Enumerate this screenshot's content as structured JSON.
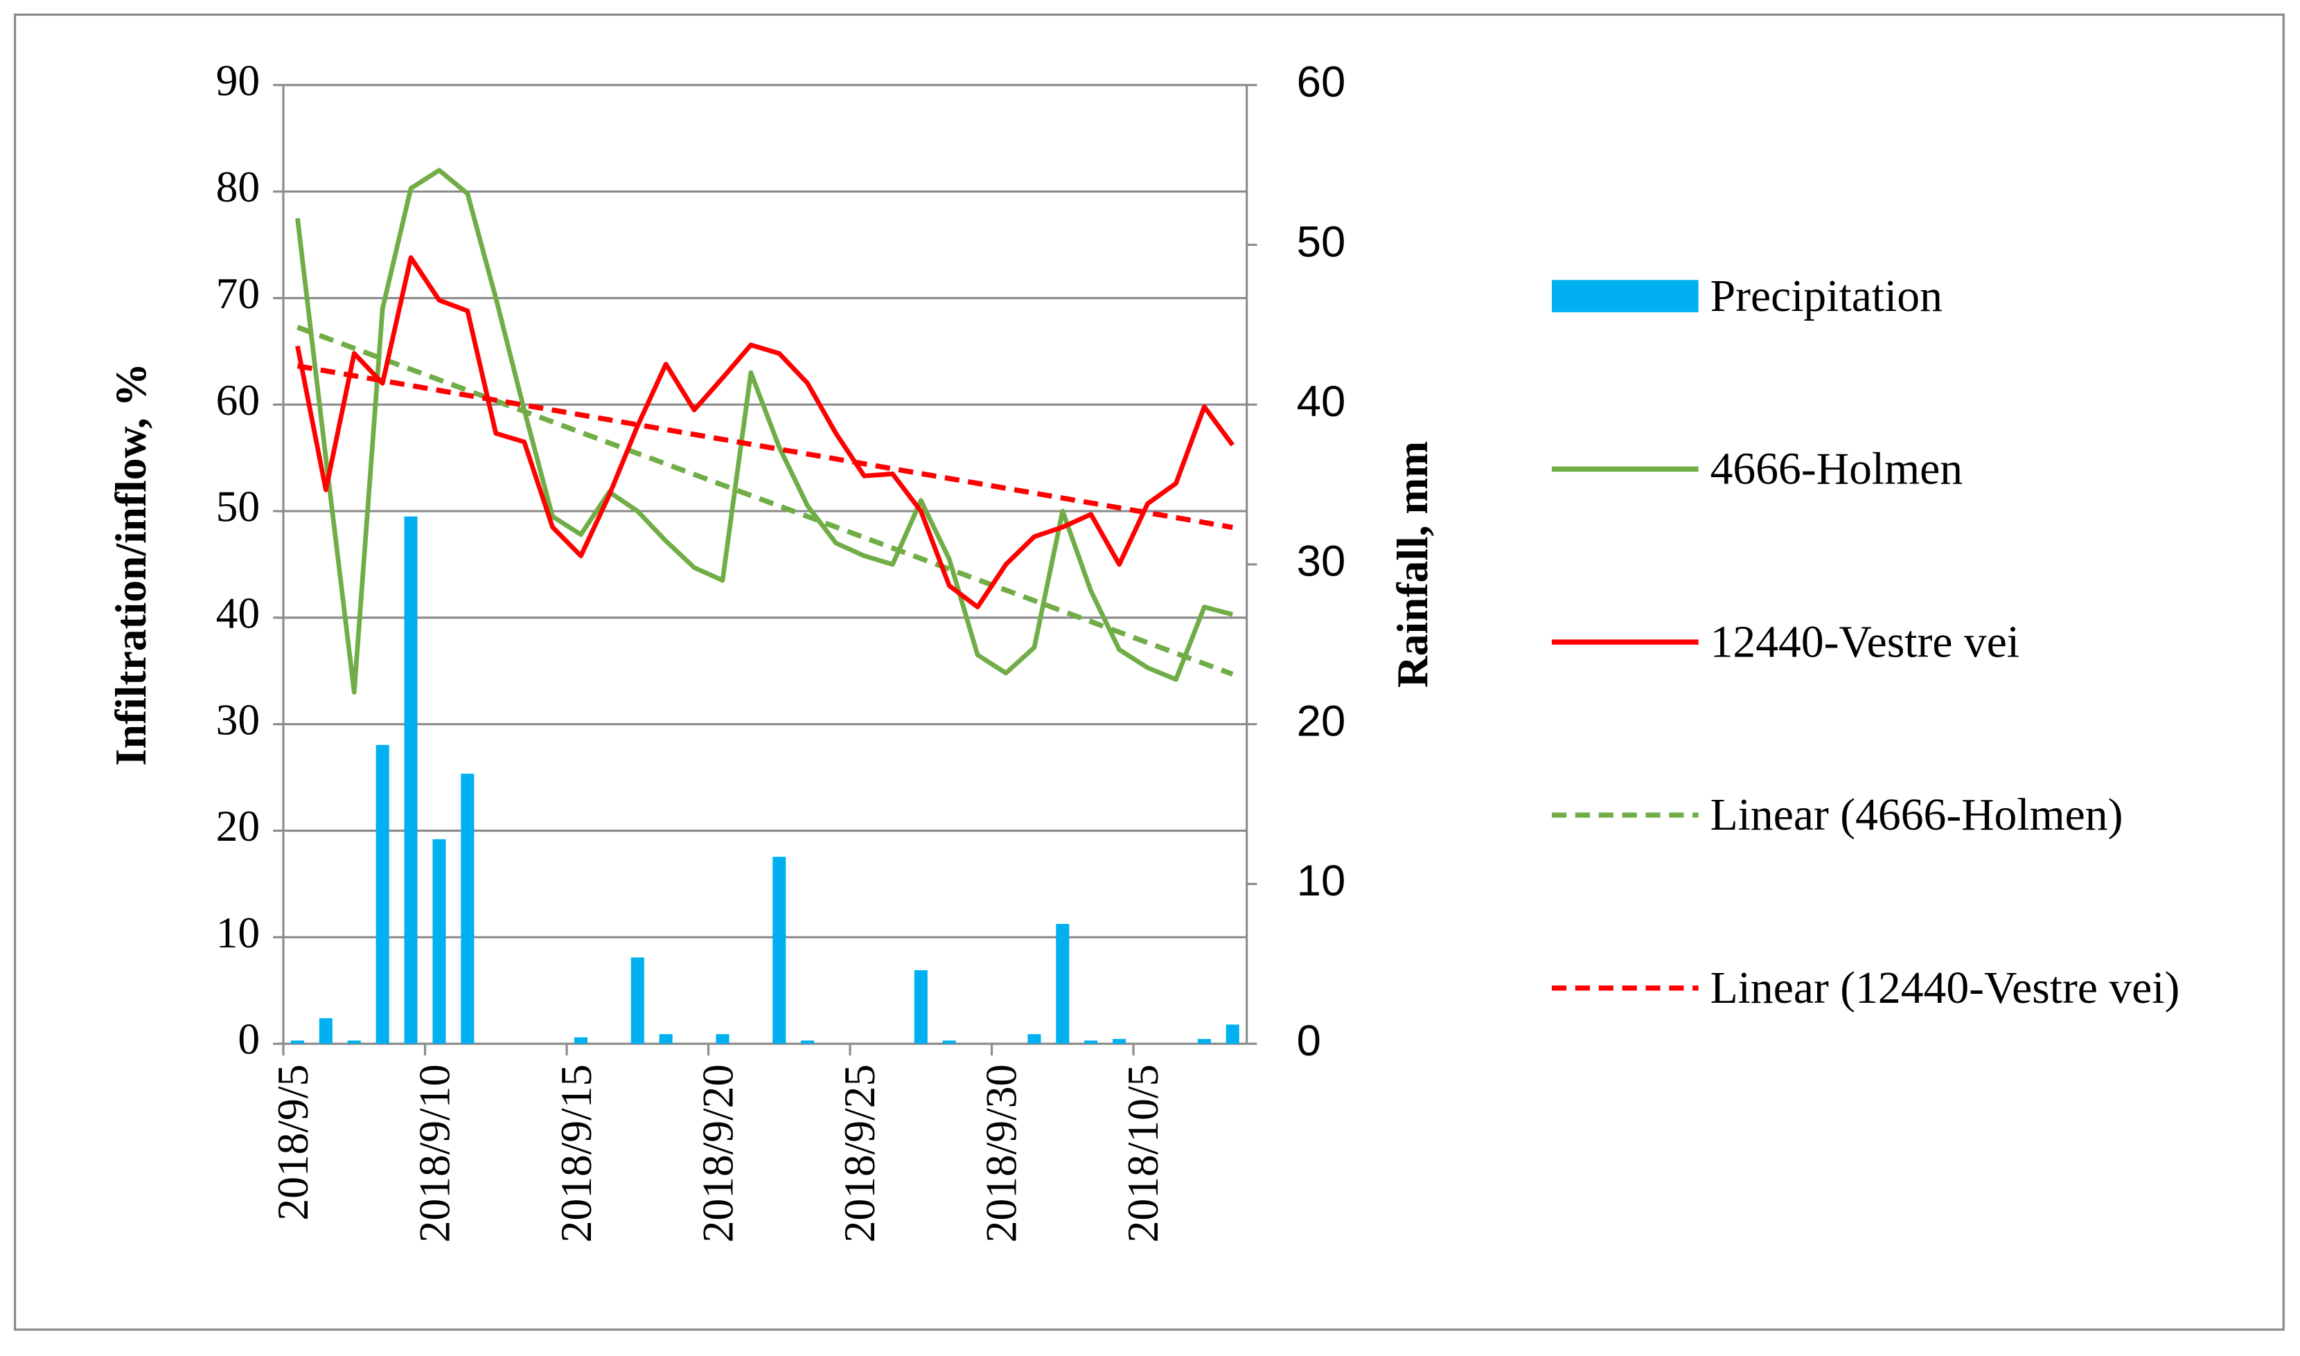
{
  "chart_data": {
    "type": "bar-line",
    "y_label": "Infiltration/inflow, %",
    "y2_label": "Rainfall, mm",
    "categories": [
      "2018/9/5",
      null,
      null,
      null,
      null,
      "2018/9/10",
      null,
      null,
      null,
      null,
      "2018/9/15",
      null,
      null,
      null,
      null,
      "2018/9/20",
      null,
      null,
      null,
      null,
      "2018/9/25",
      null,
      null,
      null,
      null,
      "2018/9/30",
      null,
      null,
      null,
      null,
      "2018/10/5",
      null,
      null,
      null
    ],
    "ylim": [
      0,
      90
    ],
    "yticks": [
      0,
      10,
      20,
      30,
      40,
      50,
      60,
      70,
      80,
      90
    ],
    "y2lim": [
      0,
      60
    ],
    "y2ticks": [
      0,
      10,
      20,
      30,
      40,
      50,
      60
    ],
    "grid": true,
    "legend": "right",
    "series": [
      {
        "name": "Precipitation",
        "type": "bar",
        "axis": "y2",
        "color": "#00b0f0",
        "values": [
          0.2,
          1.6,
          0.2,
          18.7,
          33.0,
          12.8,
          16.9,
          0,
          0,
          0,
          0.4,
          0,
          5.4,
          0.6,
          0,
          0.6,
          0,
          11.7,
          0.2,
          0,
          0,
          0,
          4.6,
          0.2,
          0,
          0,
          0.6,
          7.5,
          0.2,
          0.3,
          0,
          0,
          0.3,
          1.2
        ]
      },
      {
        "name": "4666-Holmen",
        "type": "line",
        "color": "#70ad47",
        "values": [
          77.5,
          55,
          33,
          69,
          80.3,
          82,
          79.8,
          70,
          59.5,
          49.5,
          47.8,
          51.8,
          50,
          47.2,
          44.7,
          43.5,
          63,
          56,
          50.5,
          47,
          45.8,
          45,
          51,
          45.5,
          36.5,
          34.8,
          37.2,
          50,
          42.5,
          37,
          35.3,
          34.2,
          41,
          40.3
        ],
        "trendline": {
          "name": "Linear (4666-Holmen)",
          "color": "#70ad47",
          "dashed": true
        }
      },
      {
        "name": "12440-Vestre vei",
        "type": "line",
        "color": "#ff0000",
        "values": [
          65.5,
          52,
          64.8,
          62,
          73.8,
          69.8,
          68.8,
          57.3,
          56.5,
          48.5,
          45.8,
          51.5,
          58,
          63.8,
          59.5,
          62.5,
          65.6,
          64.8,
          62,
          57.3,
          53.3,
          53.5,
          50,
          43,
          41,
          45,
          47.6,
          48.5,
          49.7,
          45,
          50.7,
          52.6,
          59.8,
          56.2
        ],
        "trendline": {
          "name": "Linear (12440-Vestre vei)",
          "color": "#ff0000",
          "dashed": true
        }
      }
    ]
  }
}
